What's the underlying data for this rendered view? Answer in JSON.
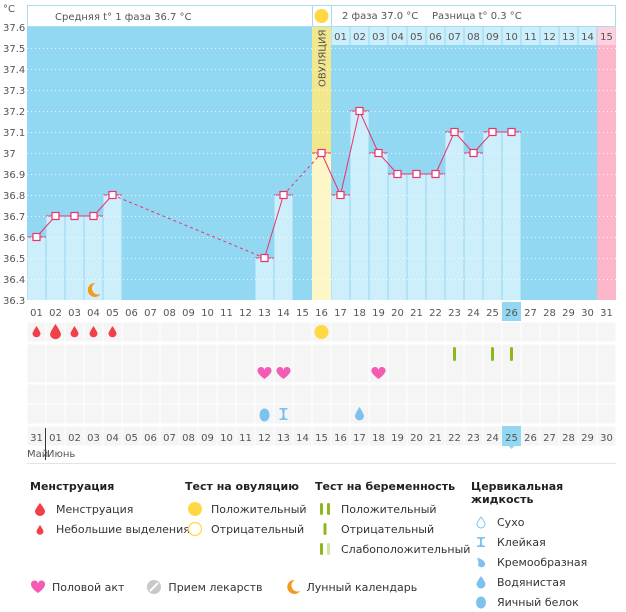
{
  "header": {
    "unit": "°C",
    "phase1_label": "Средняя t° 1 фаза 36.7 °C",
    "phase2_label": "2 фаза 37.0 °C",
    "diff_label": "Разница t° 0.3 °C",
    "ovulation_label": "ОВУЛЯЦИЯ"
  },
  "chart_data": {
    "type": "line",
    "title": "",
    "xlabel": "",
    "ylabel": "°C",
    "ylim": [
      36.3,
      37.6
    ],
    "yticks": [
      "36.3",
      "36.4",
      "36.5",
      "36.6",
      "36.7",
      "36.8",
      "36.9",
      "37",
      "37.1",
      "37.2",
      "37.3",
      "37.4",
      "37.5",
      "37.6"
    ],
    "cycle_days": [
      "01",
      "02",
      "03",
      "04",
      "05",
      "06",
      "07",
      "08",
      "09",
      "10",
      "11",
      "12",
      "13",
      "14",
      "15",
      "16",
      "17",
      "18",
      "19",
      "20",
      "21",
      "22",
      "23",
      "24",
      "25",
      "26",
      "27",
      "28",
      "29",
      "30",
      "31"
    ],
    "calendar_dates": [
      "31",
      "01",
      "02",
      "03",
      "04",
      "05",
      "06",
      "07",
      "08",
      "09",
      "10",
      "11",
      "12",
      "13",
      "14",
      "15",
      "16",
      "17",
      "18",
      "19",
      "20",
      "21",
      "22",
      "23",
      "24",
      "25",
      "26",
      "27",
      "28",
      "29",
      "30"
    ],
    "weekend_dates_idx": [
      4,
      5,
      11,
      12,
      18,
      19,
      26
    ],
    "today_cycle_day_idx": 25,
    "ovulation_day_idx": 15,
    "phase2_days": [
      "01",
      "02",
      "03",
      "04",
      "05",
      "06",
      "07",
      "08",
      "09",
      "10",
      "11",
      "12",
      "13",
      "14",
      "15"
    ],
    "next_period_day_idx": 30,
    "series": [
      {
        "name": "Базальная температура",
        "values": [
          36.6,
          36.7,
          36.7,
          36.7,
          36.8,
          null,
          null,
          null,
          null,
          null,
          null,
          null,
          36.5,
          36.8,
          null,
          37.0,
          36.8,
          37.2,
          37.0,
          36.9,
          36.9,
          36.9,
          37.1,
          37.0,
          37.1,
          37.1,
          null,
          null,
          null,
          null,
          null
        ]
      }
    ],
    "grid": true,
    "months": [
      {
        "label": "Май",
        "start_idx": 0
      },
      {
        "label": "Июнь",
        "start_idx": 1
      }
    ]
  },
  "markers": {
    "menstruation": [
      {
        "day_idx": 0,
        "type": "light"
      },
      {
        "day_idx": 1,
        "type": "heavy"
      },
      {
        "day_idx": 2,
        "type": "light"
      },
      {
        "day_idx": 3,
        "type": "light"
      },
      {
        "day_idx": 4,
        "type": "light"
      }
    ],
    "ovulation_test": [
      {
        "day_idx": 15,
        "type": "positive"
      }
    ],
    "pregnancy_test": [
      {
        "day_idx": 22,
        "type": "negative"
      },
      {
        "day_idx": 24,
        "type": "negative"
      },
      {
        "day_idx": 25,
        "type": "negative"
      }
    ],
    "intercourse": [
      {
        "day_idx": 12
      },
      {
        "day_idx": 13
      },
      {
        "day_idx": 18
      }
    ],
    "cervical_fluid": [
      {
        "day_idx": 12,
        "type": "egg_white"
      },
      {
        "day_idx": 13,
        "type": "sticky"
      },
      {
        "day_idx": 17,
        "type": "watery"
      }
    ],
    "moon": [
      {
        "day_idx": 3
      }
    ]
  },
  "colors": {
    "plot_bg": "#92d8f2",
    "bar": "#cdeefb",
    "line": "#e8336d",
    "ovulation_col": "#fdf6c6",
    "ovulation_col_top": "#f3e78d",
    "next_period": "#fdb6c9",
    "today": "#92d8f2",
    "weekend_text": "#e8336d",
    "menstruation": "#f0404a",
    "ovulation_positive": "#ffd844",
    "pregnancy_test": "#8cb81c",
    "pregnancy_test_faint": "#d2e4a0",
    "heart": "#f45bb4",
    "fluid": "#7cc2ef",
    "moon": "#f39a1c",
    "pill": "#c8c8c8"
  },
  "legend": {
    "menstruation": {
      "title": "Менструация",
      "items": [
        "Менструация",
        "Небольшие выделения"
      ]
    },
    "ovulation_test": {
      "title": "Тест на овуляцию",
      "items": [
        "Положительный",
        "Отрицательный"
      ]
    },
    "pregnancy_test": {
      "title": "Тест на беременность",
      "items": [
        "Положительный",
        "Отрицательный",
        "Слабоположительный"
      ]
    },
    "cervical_fluid": {
      "title": "Цервикальная жидкость",
      "items": [
        "Сухо",
        "Клейкая",
        "Кремообразная",
        "Водянистая",
        "Яичный белок"
      ]
    },
    "other": {
      "items": [
        "Половой акт",
        "Прием лекарств",
        "Лунный календарь"
      ]
    }
  }
}
